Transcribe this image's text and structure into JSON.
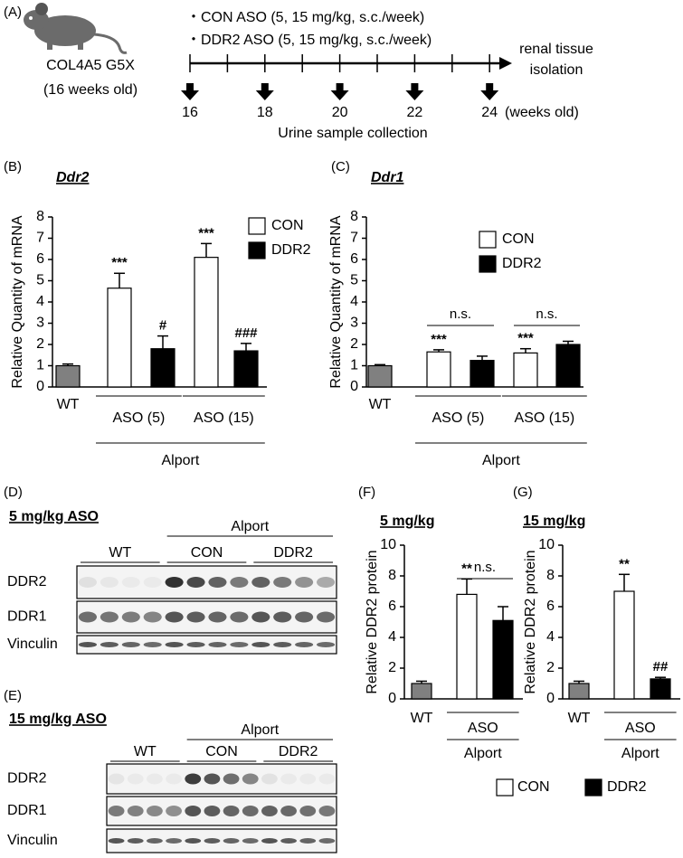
{
  "panel_a": {
    "label": "(A)",
    "model": [
      "COL4A5 G5X",
      "(16 weeks old)"
    ],
    "treatments": [
      "・CON ASO (5, 15 mg/kg, s.c./week)",
      "・DDR2 ASO (5, 15 mg/kg, s.c./week)"
    ],
    "endpoint": [
      "renal tissue",
      "isolation"
    ],
    "timepoints": [
      "16",
      "18",
      "20",
      "22",
      "24"
    ],
    "time_unit": "(weeks old)",
    "collection": "Urine sample collection"
  },
  "chart_data": [
    {
      "type": "bar",
      "panel": "(B)",
      "title": "Ddr2",
      "y_label": "Relative Quantity of mRNA",
      "categories": [
        "WT",
        null,
        null,
        null,
        null
      ],
      "values": [
        1.0,
        4.65,
        1.8,
        6.1,
        1.7
      ],
      "errors": [
        0.08,
        0.7,
        0.6,
        0.65,
        0.35
      ],
      "colors": [
        "#808080",
        "#ffffff",
        "#000000",
        "#ffffff",
        "#000000"
      ],
      "annotations": [
        null,
        "***",
        "#",
        "***",
        "###"
      ],
      "groups": [
        {
          "label": "ASO (5)"
        },
        {
          "label": "ASO (15)"
        }
      ],
      "outer_label": "Alport",
      "legend": [
        {
          "name": "CON",
          "color": "#ffffff"
        },
        {
          "name": "DDR2",
          "color": "#000000"
        }
      ],
      "ylim": [
        0,
        8
      ],
      "yticks": [
        0,
        1,
        2,
        3,
        4,
        5,
        6,
        7,
        8
      ]
    },
    {
      "type": "bar",
      "panel": "(C)",
      "title": "Ddr1",
      "y_label": "Relative Quantity of mRNA",
      "categories": [
        "WT",
        null,
        null,
        null,
        null
      ],
      "values": [
        1.0,
        1.65,
        1.25,
        1.6,
        2.0
      ],
      "errors": [
        0.05,
        0.1,
        0.2,
        0.2,
        0.15
      ],
      "colors": [
        "#808080",
        "#ffffff",
        "#000000",
        "#ffffff",
        "#000000"
      ],
      "annotations": [
        null,
        "***",
        null,
        "***",
        null
      ],
      "groups": [
        {
          "label": "ASO (5)",
          "comparison": "n.s."
        },
        {
          "label": "ASO (15)",
          "comparison": "n.s."
        }
      ],
      "outer_label": "Alport",
      "legend": [
        {
          "name": "CON",
          "color": "#ffffff"
        },
        {
          "name": "DDR2",
          "color": "#000000"
        }
      ],
      "ylim": [
        0,
        8
      ],
      "yticks": [
        0,
        1,
        2,
        3,
        4,
        5,
        6,
        7,
        8
      ]
    },
    {
      "type": "bar",
      "panel": "(F)",
      "title": "5 mg/kg",
      "y_label": "Relative DDR2 protein",
      "categories": [
        "WT",
        null,
        null
      ],
      "values": [
        1.0,
        6.8,
        5.1
      ],
      "errors": [
        0.15,
        1.0,
        0.9
      ],
      "colors": [
        "#808080",
        "#ffffff",
        "#000000"
      ],
      "annotations": [
        null,
        "**",
        null
      ],
      "groups": [
        {
          "label": "ASO",
          "comparison": "n.s."
        }
      ],
      "outer_label": "Alport",
      "ylim": [
        0,
        10
      ],
      "yticks": [
        0,
        2,
        4,
        6,
        8,
        10
      ]
    },
    {
      "type": "bar",
      "panel": "(G)",
      "title": "15 mg/kg",
      "y_label": "Relative DDR2 protein",
      "categories": [
        "WT",
        null,
        null
      ],
      "values": [
        1.0,
        7.0,
        1.3
      ],
      "errors": [
        0.15,
        1.1,
        0.1
      ],
      "colors": [
        "#808080",
        "#ffffff",
        "#000000"
      ],
      "annotations": [
        null,
        "**",
        "##"
      ],
      "groups": [
        {
          "label": "ASO"
        }
      ],
      "outer_label": "Alport",
      "ylim": [
        0,
        10
      ],
      "yticks": [
        0,
        2,
        4,
        6,
        8,
        10
      ]
    }
  ],
  "shared_legend": [
    {
      "name": "CON",
      "color": "#ffffff"
    },
    {
      "name": "DDR2",
      "color": "#000000"
    }
  ],
  "blots": [
    {
      "label": "(D)",
      "title": "5 mg/kg ASO",
      "group": "Alport",
      "lanes": [
        "WT",
        "CON",
        "DDR2"
      ],
      "rows": [
        "DDR2",
        "DDR1",
        "Vinculin"
      ]
    },
    {
      "label": "(E)",
      "title": "15 mg/kg ASO",
      "group": "Alport",
      "lanes": [
        "WT",
        "CON",
        "DDR2"
      ],
      "rows": [
        "DDR2",
        "DDR1",
        "Vinculin"
      ]
    }
  ]
}
